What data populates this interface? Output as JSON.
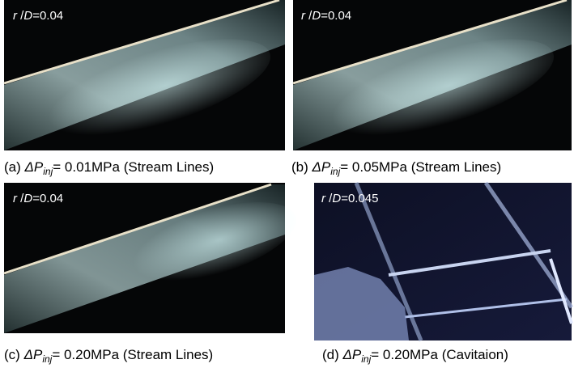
{
  "panels": [
    {
      "overlay": {
        "r": "r",
        "slash": "/",
        "d": "D",
        "value": "=0.04"
      },
      "caption": {
        "label": "(a)",
        "symbol": "ΔP",
        "subscript": "inj",
        "text": "= 0.01MPa (Stream Lines)"
      }
    },
    {
      "overlay": {
        "r": "r",
        "slash": "/",
        "d": "D",
        "value": "=0.04"
      },
      "caption": {
        "label": "(b)",
        "symbol": "ΔP",
        "subscript": "inj",
        "text": "= 0.05MPa (Stream Lines)"
      }
    },
    {
      "overlay": {
        "r": "r",
        "slash": "/",
        "d": "D",
        "value": "=0.04"
      },
      "caption": {
        "label": "(c)",
        "symbol": "ΔP",
        "subscript": "inj",
        "text": "= 0.20MPa (Stream Lines)"
      }
    },
    {
      "overlay": {
        "r": "r",
        "slash": "/",
        "d": "D",
        "value": "=0.045"
      },
      "caption": {
        "label": "(d)",
        "symbol": "ΔP",
        "subscript": "inj",
        "text": "= 0.20MPa (Cavitaion)"
      }
    }
  ]
}
